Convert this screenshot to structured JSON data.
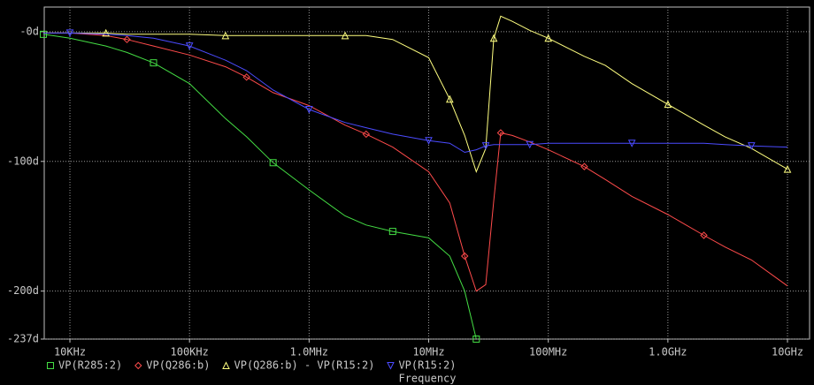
{
  "chart_data": {
    "type": "line",
    "x_label": "Frequency",
    "xscale": "log",
    "grid": true,
    "xlim": [
      6100,
      15300000000
    ],
    "ylim": [
      -237,
      19
    ],
    "xticks": [
      {
        "value": 10000,
        "label": "10KHz"
      },
      {
        "value": 100000,
        "label": "100KHz"
      },
      {
        "value": 1000000,
        "label": "1.0MHz"
      },
      {
        "value": 10000000,
        "label": "10MHz"
      },
      {
        "value": 100000000,
        "label": "100MHz"
      },
      {
        "value": 1000000000,
        "label": "1.0GHz"
      },
      {
        "value": 10000000000,
        "label": "10GHz"
      }
    ],
    "yticks": [
      {
        "value": 0,
        "label": "-0d"
      },
      {
        "value": -100,
        "label": "-100d"
      },
      {
        "value": -200,
        "label": "-200d"
      },
      {
        "value": -237,
        "label": "-237d"
      }
    ],
    "x": [
      6000,
      10000,
      20000,
      30000,
      50000,
      100000,
      200000,
      300000,
      500000,
      1000000,
      2000000,
      3000000,
      5000000,
      10000000,
      15000000,
      20000000,
      25000000,
      30000000,
      35000000,
      40000000,
      50000000,
      70000000,
      100000000,
      200000000,
      300000000,
      500000000,
      1000000000,
      2000000000,
      3000000000,
      5000000000,
      10000000000
    ],
    "series": [
      {
        "name": "VP(R285:2)",
        "color": "#44dd44",
        "marker": "square",
        "values": [
          -2,
          -5,
          -11,
          -16,
          -24,
          -40,
          -67,
          -81,
          -101,
          -122,
          -142,
          -149,
          -154,
          -159,
          -173,
          -200,
          -237,
          null,
          null,
          null,
          null,
          null,
          null,
          null,
          null,
          null,
          null,
          null,
          null,
          null,
          null
        ]
      },
      {
        "name": "VP(Q286:b)",
        "color": "#ff4b4b",
        "marker": "diamond",
        "values": [
          -1,
          -1,
          -3,
          -6,
          -11,
          -18,
          -27,
          -35,
          -47,
          -57,
          -72,
          -79,
          -89,
          -108,
          -132,
          -173,
          -200,
          -195,
          -130,
          -78,
          -80,
          -85,
          -91,
          -104,
          -114,
          -127,
          -141,
          -157,
          -166,
          -176,
          -196
        ]
      },
      {
        "name": "VP(Q286:b) - VP(R15:2)",
        "color": "#ffff80",
        "marker": "triangle",
        "values": [
          -1,
          -1,
          -1,
          -2,
          -2,
          -2,
          -3,
          -3,
          -3,
          -3,
          -3,
          -3,
          -6,
          -20,
          -52,
          -80,
          -108,
          -90,
          -5,
          12,
          8,
          1,
          -5,
          -19,
          -26,
          -40,
          -56,
          -72,
          -81,
          -90,
          -106
        ]
      },
      {
        "name": "VP(R15:2)",
        "color": "#4b4bff",
        "marker": "triangle-down",
        "values": [
          -1,
          -1,
          -2,
          -3,
          -5,
          -11,
          -22,
          -30,
          -45,
          -60,
          -70,
          -74,
          -79,
          -84,
          -86,
          -93,
          -91,
          -88,
          -87,
          -87,
          -87,
          -87,
          -86,
          -86,
          -86,
          -86,
          -86,
          -86,
          -87,
          -88,
          -89
        ]
      }
    ]
  }
}
